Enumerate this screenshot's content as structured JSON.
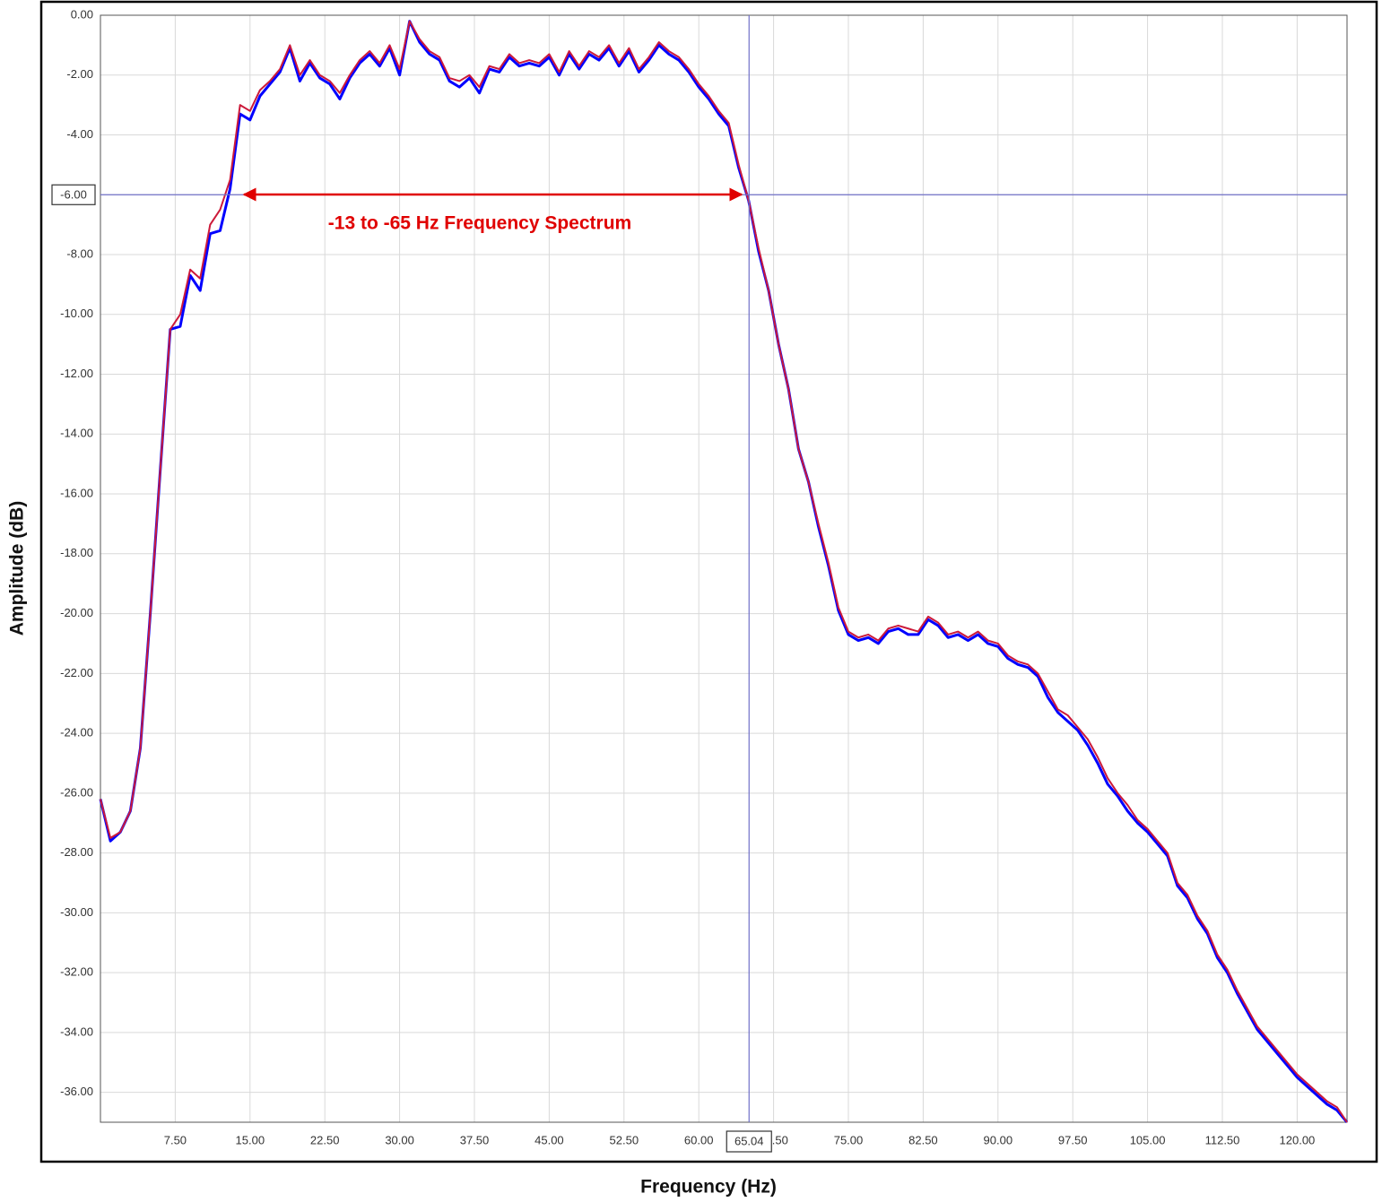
{
  "chart_data": {
    "type": "line",
    "xlabel": "Frequency (Hz)",
    "ylabel": "Amplitude (dB)",
    "annotation": "-13 to -65 Hz Frequency Spectrum",
    "cursor": {
      "x": {
        "value": 65.04,
        "label": "65.04"
      },
      "y": {
        "value": -6,
        "label": "-6.00"
      }
    },
    "xlim": [
      0,
      125
    ],
    "ylim": [
      -37,
      0
    ],
    "grid": true,
    "xticks": [
      {
        "value": 7.5,
        "label": "7.50"
      },
      {
        "value": 15,
        "label": "15.00"
      },
      {
        "value": 22.5,
        "label": "22.50"
      },
      {
        "value": 30,
        "label": "30.00"
      },
      {
        "value": 37.5,
        "label": "37.50"
      },
      {
        "value": 45,
        "label": "45.00"
      },
      {
        "value": 52.5,
        "label": "52.50"
      },
      {
        "value": 60,
        "label": "60.00"
      },
      {
        "value": 67.5,
        "label": "67.50"
      },
      {
        "value": 75,
        "label": "75.00"
      },
      {
        "value": 82.5,
        "label": "82.50"
      },
      {
        "value": 90,
        "label": "90.00"
      },
      {
        "value": 97.5,
        "label": "97.50"
      },
      {
        "value": 105,
        "label": "105.00"
      },
      {
        "value": 112.5,
        "label": "112.50"
      },
      {
        "value": 120,
        "label": "120.00"
      }
    ],
    "yticks": [
      {
        "value": 0,
        "label": "0.00"
      },
      {
        "value": -2,
        "label": "-2.00"
      },
      {
        "value": -4,
        "label": "-4.00"
      },
      {
        "value": -6,
        "label": "-6.00"
      },
      {
        "value": -8,
        "label": "-8.00"
      },
      {
        "value": -10,
        "label": "-10.00"
      },
      {
        "value": -12,
        "label": "-12.00"
      },
      {
        "value": -14,
        "label": "-14.00"
      },
      {
        "value": -16,
        "label": "-16.00"
      },
      {
        "value": -18,
        "label": "-18.00"
      },
      {
        "value": -20,
        "label": "-20.00"
      },
      {
        "value": -22,
        "label": "-22.00"
      },
      {
        "value": -24,
        "label": "-24.00"
      },
      {
        "value": -26,
        "label": "-26.00"
      },
      {
        "value": -28,
        "label": "-28.00"
      },
      {
        "value": -30,
        "label": "-30.00"
      },
      {
        "value": -32,
        "label": "-32.00"
      },
      {
        "value": -34,
        "label": "-34.00"
      },
      {
        "value": -36,
        "label": "-36.00"
      }
    ],
    "x": [
      0,
      1,
      2,
      3,
      4,
      5,
      6,
      7,
      8,
      9,
      10,
      11,
      12,
      13,
      14,
      15,
      16,
      17,
      18,
      19,
      20,
      21,
      22,
      23,
      24,
      25,
      26,
      27,
      28,
      29,
      30,
      31,
      32,
      33,
      34,
      35,
      36,
      37,
      38,
      39,
      40,
      41,
      42,
      43,
      44,
      45,
      46,
      47,
      48,
      49,
      50,
      51,
      52,
      53,
      54,
      55,
      56,
      57,
      58,
      59,
      60,
      61,
      62,
      63,
      64,
      65,
      66,
      67,
      68,
      69,
      70,
      71,
      72,
      73,
      74,
      75,
      76,
      77,
      78,
      79,
      80,
      81,
      82,
      83,
      84,
      85,
      86,
      87,
      88,
      89,
      90,
      91,
      92,
      93,
      94,
      95,
      96,
      97,
      98,
      99,
      100,
      101,
      102,
      103,
      104,
      105,
      106,
      107,
      108,
      109,
      110,
      111,
      112,
      113,
      114,
      115,
      116,
      117,
      118,
      119,
      120,
      121,
      122,
      123,
      124,
      125
    ],
    "series": [
      {
        "color": "#0000ff",
        "values": [
          -26.2,
          -27.6,
          -27.3,
          -26.6,
          -24.5,
          -20,
          -15.2,
          -10.5,
          -10.4,
          -8.7,
          -9.2,
          -7.3,
          -7.2,
          -5.8,
          -3.3,
          -3.5,
          -2.7,
          -2.3,
          -1.9,
          -1.1,
          -2.2,
          -1.6,
          -2.1,
          -2.3,
          -2.8,
          -2.1,
          -1.6,
          -1.3,
          -1.7,
          -1.1,
          -2.0,
          -0.2,
          -0.9,
          -1.3,
          -1.5,
          -2.2,
          -2.4,
          -2.1,
          -2.6,
          -1.8,
          -1.9,
          -1.4,
          -1.7,
          -1.6,
          -1.7,
          -1.4,
          -2.0,
          -1.3,
          -1.8,
          -1.3,
          -1.5,
          -1.1,
          -1.7,
          -1.2,
          -1.9,
          -1.5,
          -1.0,
          -1.3,
          -1.5,
          -1.9,
          -2.4,
          -2.8,
          -3.3,
          -3.7,
          -5.1,
          -6.2,
          -7.9,
          -9.2,
          -11.0,
          -12.5,
          -14.5,
          -15.6,
          -17.1,
          -18.4,
          -19.9,
          -20.7,
          -20.9,
          -20.8,
          -21.0,
          -20.6,
          -20.5,
          -20.7,
          -20.7,
          -20.2,
          -20.4,
          -20.8,
          -20.7,
          -20.9,
          -20.7,
          -21.0,
          -21.1,
          -21.5,
          -21.7,
          -21.8,
          -22.1,
          -22.8,
          -23.3,
          -23.6,
          -23.9,
          -24.4,
          -25.0,
          -25.7,
          -26.1,
          -26.6,
          -27.0,
          -27.3,
          -27.7,
          -28.1,
          -29.1,
          -29.5,
          -30.2,
          -30.7,
          -31.5,
          -32.0,
          -32.7,
          -33.3,
          -33.9,
          -34.3,
          -34.7,
          -35.1,
          -35.5,
          -35.8,
          -36.1,
          -36.4,
          -36.6,
          -37.0
        ]
      },
      {
        "color": "#cc1a3a",
        "values": [
          -26.2,
          -27.5,
          -27.3,
          -26.6,
          -24.5,
          -20,
          -15.2,
          -10.5,
          -10,
          -8.5,
          -8.8,
          -7,
          -6.5,
          -5.5,
          -3,
          -3.2,
          -2.5,
          -2.2,
          -1.8,
          -1,
          -2,
          -1.5,
          -2,
          -2.2,
          -2.6,
          -2,
          -1.5,
          -1.2,
          -1.6,
          -1,
          -1.8,
          -0.2,
          -0.8,
          -1.2,
          -1.4,
          -2.1,
          -2.2,
          -2,
          -2.4,
          -1.7,
          -1.8,
          -1.3,
          -1.6,
          -1.5,
          -1.6,
          -1.3,
          -1.9,
          -1.2,
          -1.7,
          -1.2,
          -1.4,
          -1,
          -1.6,
          -1.1,
          -1.8,
          -1.4,
          -0.9,
          -1.2,
          -1.4,
          -1.8,
          -2.3,
          -2.7,
          -3.2,
          -3.6,
          -5,
          -6.2,
          -7.8,
          -9.2,
          -11,
          -12.5,
          -14.5,
          -15.6,
          -17,
          -18.3,
          -19.8,
          -20.6,
          -20.8,
          -20.7,
          -20.9,
          -20.5,
          -20.4,
          -20.5,
          -20.6,
          -20.1,
          -20.3,
          -20.7,
          -20.6,
          -20.8,
          -20.6,
          -20.9,
          -21,
          -21.4,
          -21.6,
          -21.7,
          -22,
          -22.6,
          -23.2,
          -23.4,
          -23.8,
          -24.2,
          -24.8,
          -25.5,
          -26,
          -26.4,
          -26.9,
          -27.2,
          -27.6,
          -28,
          -29,
          -29.4,
          -30.1,
          -30.6,
          -31.4,
          -31.9,
          -32.6,
          -33.2,
          -33.8,
          -34.2,
          -34.6,
          -35,
          -35.4,
          -35.7,
          -36,
          -36.3,
          -36.5,
          -37
        ]
      }
    ]
  }
}
